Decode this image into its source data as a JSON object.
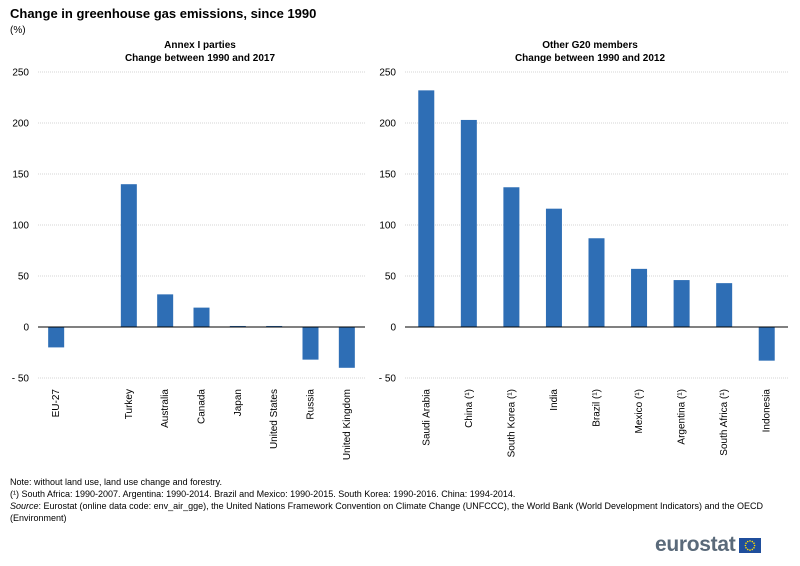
{
  "title": "Change in greenhouse gas emissions, since 1990",
  "unit": "(%)",
  "colors": {
    "bar": "#2e6eb5",
    "grid": "#c8c8c8",
    "axis": "#000000"
  },
  "chart_data": [
    {
      "type": "bar",
      "title": "Annex I parties",
      "subtitle": "Change between 1990 and 2017",
      "categories": [
        "EU-27",
        "",
        "Turkey",
        "Australia",
        "Canada",
        "Japan",
        "United States",
        "Russia",
        "United Kingdom"
      ],
      "values": [
        -20,
        null,
        140,
        32,
        19,
        1,
        1,
        -32,
        -40
      ],
      "ylim": [
        -50,
        250
      ],
      "yticks": [
        -50,
        0,
        50,
        100,
        150,
        200,
        250
      ],
      "ytick_labels": [
        "- 50",
        "0",
        "50",
        "100",
        "150",
        "200",
        "250"
      ],
      "grid": true
    },
    {
      "type": "bar",
      "title": "Other G20 members",
      "subtitle": "Change between 1990 and 2012",
      "categories": [
        "Saudi Arabia",
        "China (¹)",
        "South Korea (¹)",
        "India",
        "Brazil (¹)",
        "Mexico (¹)",
        "Argentina (¹)",
        "South Africa (¹)",
        "Indonesia"
      ],
      "values": [
        232,
        203,
        137,
        116,
        87,
        57,
        46,
        43,
        -33
      ],
      "ylim": [
        -50,
        250
      ],
      "yticks": [
        -50,
        0,
        50,
        100,
        150,
        200,
        250
      ],
      "ytick_labels": [
        "- 50",
        "0",
        "50",
        "100",
        "150",
        "200",
        "250"
      ],
      "grid": true
    }
  ],
  "notes": {
    "line1": "Note: without land use, land use change and forestry.",
    "line2": "(¹) South Africa: 1990-2007. Argentina: 1990-2014. Brazil and Mexico: 1990-2015. South Korea: 1990-2016. China: 1994-2014.",
    "source_label": "Source",
    "source_text": ": Eurostat (online data code: env_air_gge), the United Nations Framework Convention on Climate Change (UNFCCC), the World Bank (World Development Indicators) and the OECD (Environment)"
  },
  "logo": {
    "text": "eurostat"
  }
}
